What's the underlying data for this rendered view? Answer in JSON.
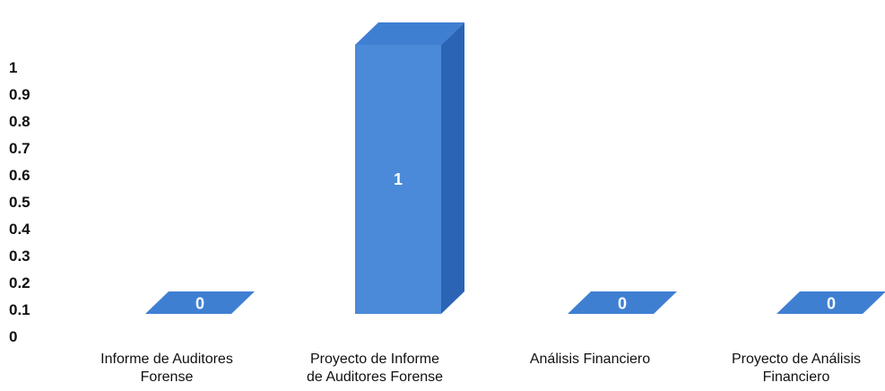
{
  "chart_data": {
    "type": "bar",
    "style": "3d",
    "categories": [
      [
        "Informe de Auditores",
        "Forense"
      ],
      [
        "Proyecto de Informe",
        "de Auditores Forense"
      ],
      [
        "Análisis Financiero"
      ],
      [
        "Proyecto de Análisis",
        "Financiero"
      ]
    ],
    "values": [
      0,
      1,
      0,
      0
    ],
    "data_labels": [
      "0",
      "1",
      "0",
      "0"
    ],
    "yticks": [
      "0",
      "0.1",
      "0.2",
      "0.3",
      "0.4",
      "0.5",
      "0.6",
      "0.7",
      "0.8",
      "0.9",
      "1"
    ],
    "ylim": [
      0,
      1.1
    ],
    "grid": false,
    "legend": "none",
    "colors": {
      "front": "#4a8ad8",
      "side": "#2b64b5",
      "top": "#3f7fd2",
      "label": "#ffffff",
      "text": "#111111"
    }
  }
}
